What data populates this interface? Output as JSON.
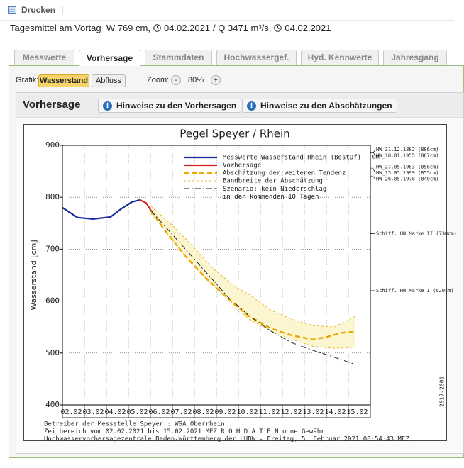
{
  "toolbar": {
    "print": "Drucken",
    "separator": "|"
  },
  "summary": {
    "prefix": "Tagesmittel am Vortag  W 769 cm,",
    "date1": "04.02.2021",
    "mid": "/ Q 3471 m³/s,",
    "date2": "04.02.2021"
  },
  "tabs": [
    "Messwerte",
    "Vorhersage",
    "Stammdaten",
    "Hochwassergef.",
    "Hyd. Kennwerte",
    "Jahresgang"
  ],
  "active_tab": 1,
  "grafik": {
    "label": "Grafik:",
    "buttons": [
      "Wasserstand",
      "Abfluss"
    ],
    "active_button": 0,
    "zoom_label": "Zoom:",
    "minus": "-",
    "zoom_value": "80%",
    "plus": "+"
  },
  "section": {
    "title": "Vorhersage",
    "buttons": [
      "Hinweise zu den Vorhersagen",
      "Hinweise zu den Abschätzungen"
    ]
  },
  "chart_data": {
    "type": "line",
    "title": "Pegel Speyer / Rhein",
    "y_label": "Wasserstand [cm]",
    "unit_right": "cm",
    "xlim": [
      0,
      14
    ],
    "xticks": [
      {
        "value": 0.5,
        "label": "02.02."
      },
      {
        "value": 1.5,
        "label": "03.02."
      },
      {
        "value": 2.5,
        "label": "04.02."
      },
      {
        "value": 3.5,
        "label": "05.02."
      },
      {
        "value": 4.5,
        "label": "06.02."
      },
      {
        "value": 5.5,
        "label": "07.02."
      },
      {
        "value": 6.5,
        "label": "08.02."
      },
      {
        "value": 7.5,
        "label": "09.02."
      },
      {
        "value": 8.5,
        "label": "10.02."
      },
      {
        "value": 9.5,
        "label": "11.02."
      },
      {
        "value": 10.5,
        "label": "12.02."
      },
      {
        "value": 11.5,
        "label": "13.02."
      },
      {
        "value": 12.5,
        "label": "14.02."
      },
      {
        "value": 13.5,
        "label": "15.02."
      }
    ],
    "ylim": [
      400,
      900
    ],
    "yticks": [
      400,
      500,
      600,
      700,
      800,
      900
    ],
    "grid": true,
    "series": [
      {
        "name": "Messwerte Wasserstand Rhein (BestOf)",
        "color": "#1a2a9c",
        "style": "solid",
        "x": [
          0,
          0.68,
          1.39,
          2.19,
          2.68,
          3.16,
          3.52
        ],
        "values": [
          780,
          761,
          758,
          762,
          778,
          791,
          795
        ]
      },
      {
        "name": "Vorhersage",
        "color": "#d42020",
        "style": "solid",
        "x": [
          3.52,
          3.81,
          4.03
        ],
        "values": [
          795,
          789,
          774
        ]
      },
      {
        "name": "Abschätzung der weiteren Tendenz",
        "color": "#e8a800",
        "style": "dashed",
        "x": [
          4.03,
          4.61,
          5.58,
          6.55,
          7.52,
          8.48,
          9.45,
          10.42,
          11.39,
          12.03,
          12.68,
          13.32
        ],
        "values": [
          774,
          739,
          687,
          643,
          605,
          571,
          548,
          534,
          526,
          531,
          539,
          541
        ]
      },
      {
        "name": "Bandbreite der Abschätzung",
        "color": "#e8a800",
        "style": "band",
        "fill": "#fbf6d0",
        "x": [
          4.03,
          4.94,
          5.9,
          6.87,
          7.84,
          8.48,
          9.45,
          10.42,
          11.39,
          12.35,
          13.0,
          13.32
        ],
        "upper": [
          783,
          748,
          707,
          662,
          628,
          613,
          583,
          565,
          553,
          550,
          564,
          571
        ],
        "lower": [
          769,
          721,
          670,
          630,
          591,
          565,
          543,
          526,
          513,
          509,
          510,
          512
        ]
      },
      {
        "name": "Szenario: kein Niederschlag\nin den kommenden 10 Tagen",
        "color": "#111111",
        "style": "dashdot",
        "x": [
          4.03,
          4.94,
          6.23,
          7.52,
          8.48,
          9.45,
          10.42,
          11.39,
          12.35,
          13.32
        ],
        "values": [
          774,
          731,
          670,
          608,
          572,
          543,
          520,
          505,
          492,
          478
        ]
      }
    ],
    "marks": [
      {
        "value": 886,
        "label": "HW_31.12.1882 (886cm)"
      },
      {
        "value": 887,
        "label": "HW_18.01.1955 (887cm)"
      },
      {
        "value": 858,
        "label": "HW_27.05.1983 (858cm)"
      },
      {
        "value": 855,
        "label": "HW_15.05.1999 (855cm)"
      },
      {
        "value": 840,
        "label": "HW_26.05.1978 (840cm)"
      },
      {
        "value": 730,
        "label": "Schiff. HW Marke II (730cm)"
      },
      {
        "value": 620,
        "label": "Schiff. HW Marke I (620cm)"
      }
    ],
    "footer": [
      "Betreiber der Messstelle Speyer : WSA Oberrhein",
      "Zeitbereich vom 02.02.2021 bis 15.02.2021   MEZ   R O H D A T E N ohne Gewähr",
      "Hochwasservorhersagezentrale Baden-Württemberg der LUBW - Freitag, 5. Februar 2021 08:54:43 MEZ"
    ],
    "code": "2017-2001"
  }
}
